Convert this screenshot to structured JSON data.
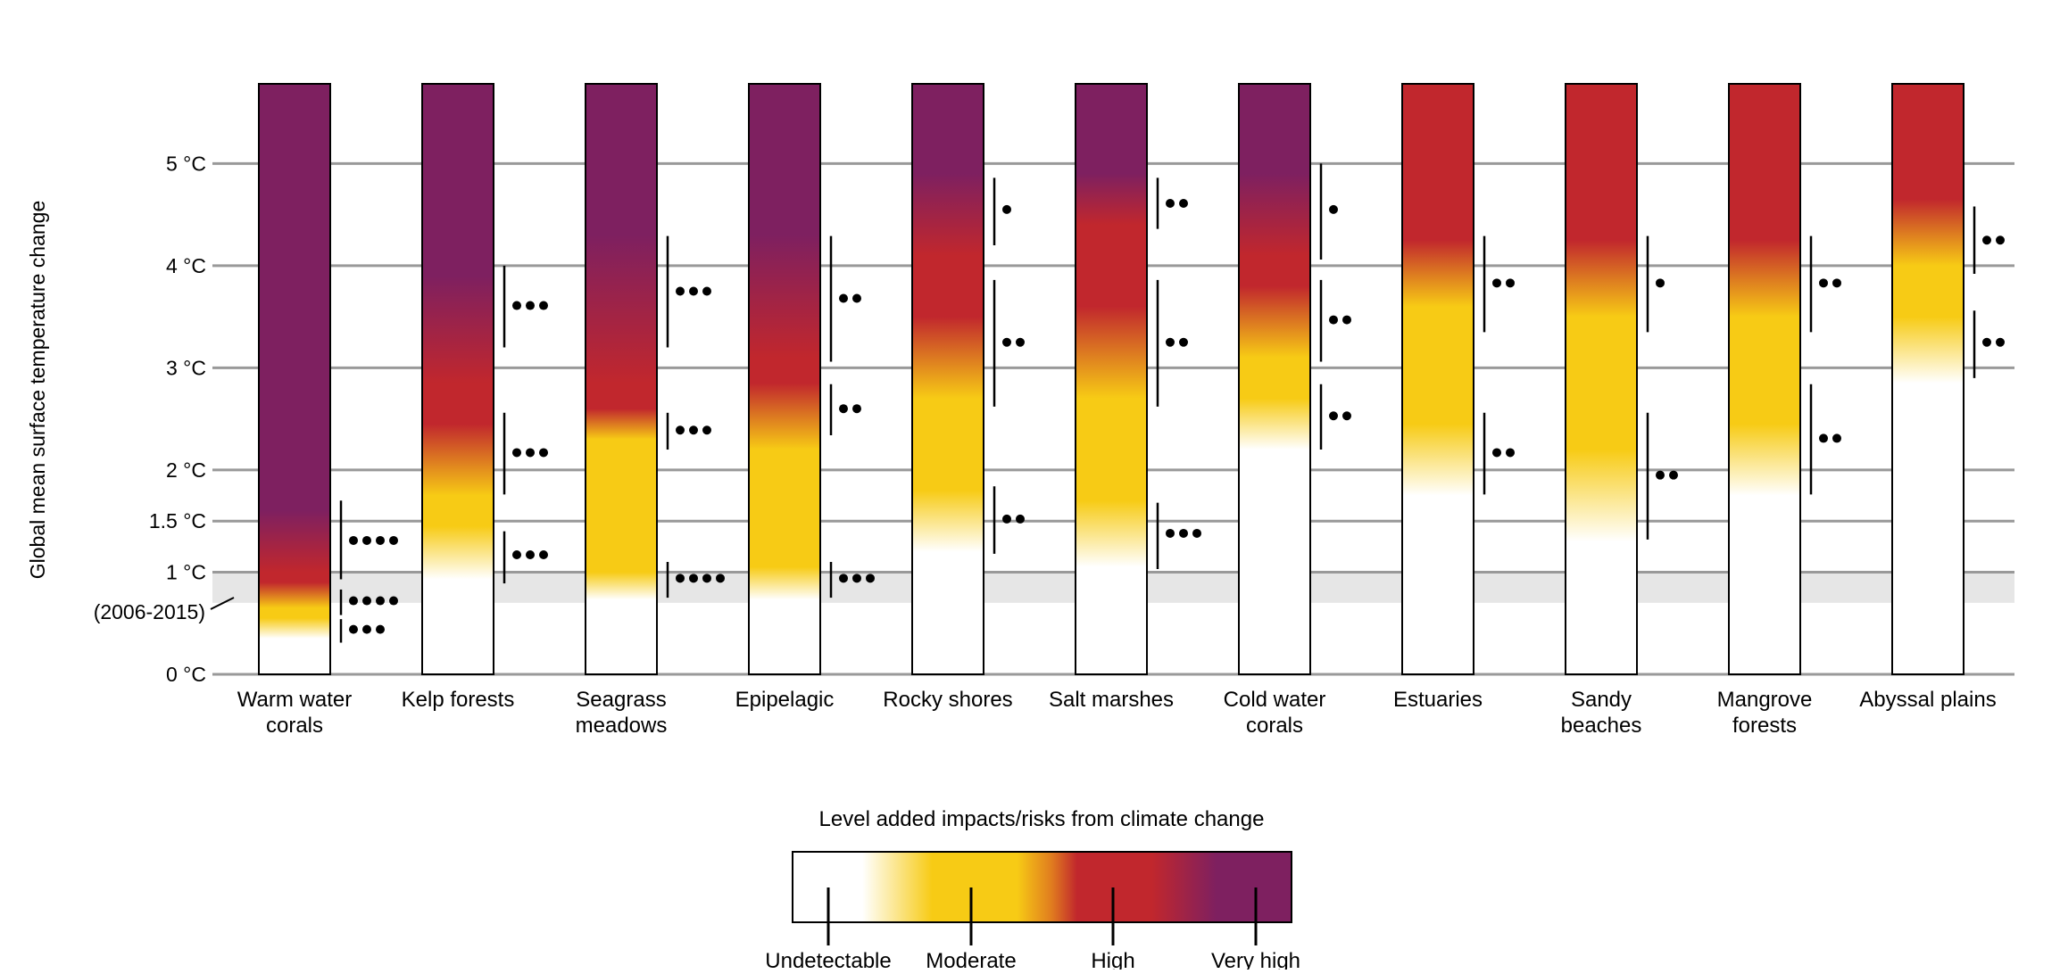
{
  "chart_data": {
    "type": "heatmap",
    "ylabel": "Global mean surface temperature change",
    "ylim": [
      0,
      5.78
    ],
    "yticks": [
      {
        "value": 0,
        "label": "0 °C"
      },
      {
        "value": 1,
        "label": "1 °C"
      },
      {
        "value": 1.5,
        "label": "1.5 °C"
      },
      {
        "value": 2,
        "label": "2 °C"
      },
      {
        "value": 3,
        "label": "3 °C"
      },
      {
        "value": 4,
        "label": "4 °C"
      },
      {
        "value": 5,
        "label": "5 °C"
      }
    ],
    "reference_band": {
      "range": [
        0.7,
        1.0
      ],
      "label": "(2006-2015)"
    },
    "colors": {
      "undetectable": "#ffffff",
      "moderate": "#f7cb15",
      "transition": "#e07b1f",
      "high": "#c1272d",
      "very_high": "#7e2060"
    },
    "legend": {
      "title": "Level added impacts/risks from climate change",
      "levels": [
        "Undetectable",
        "Moderate",
        "High",
        "Very high"
      ],
      "placement": "bottom-center"
    },
    "systems": [
      {
        "label": [
          "Warm water",
          "corals"
        ],
        "stops": [
          [
            0.35,
            "undetectable"
          ],
          [
            0.55,
            "moderate"
          ],
          [
            0.65,
            "moderate"
          ],
          [
            0.9,
            "high"
          ],
          [
            1.0,
            "high"
          ],
          [
            1.6,
            "very_high"
          ]
        ],
        "confidence": [
          {
            "range": [
              0.93,
              1.7
            ],
            "at": 1.31,
            "dots": 4
          },
          {
            "range": [
              0.58,
              0.83
            ],
            "at": 0.72,
            "dots": 4
          },
          {
            "range": [
              0.31,
              0.54
            ],
            "at": 0.44,
            "dots": 3
          }
        ]
      },
      {
        "label": [
          "Kelp forests"
        ],
        "stops": [
          [
            0.93,
            "undetectable"
          ],
          [
            1.45,
            "moderate"
          ],
          [
            1.75,
            "moderate"
          ],
          [
            2.45,
            "high"
          ],
          [
            2.85,
            "high"
          ],
          [
            3.9,
            "very_high"
          ]
        ],
        "confidence": [
          {
            "range": [
              3.2,
              4.0
            ],
            "at": 3.61,
            "dots": 3
          },
          {
            "range": [
              1.76,
              2.56
            ],
            "at": 2.17,
            "dots": 3
          },
          {
            "range": [
              0.89,
              1.4
            ],
            "at": 1.17,
            "dots": 3
          }
        ]
      },
      {
        "label": [
          "Seagrass",
          "meadows"
        ],
        "stops": [
          [
            0.73,
            "undetectable"
          ],
          [
            1.0,
            "moderate"
          ],
          [
            2.3,
            "moderate"
          ],
          [
            2.6,
            "high"
          ],
          [
            2.85,
            "high"
          ],
          [
            4.3,
            "very_high"
          ]
        ],
        "confidence": [
          {
            "range": [
              3.2,
              4.29
            ],
            "at": 3.75,
            "dots": 3
          },
          {
            "range": [
              2.2,
              2.56
            ],
            "at": 2.39,
            "dots": 3
          },
          {
            "range": [
              0.75,
              1.1
            ],
            "at": 0.94,
            "dots": 4
          }
        ]
      },
      {
        "label": [
          "Epipelagic"
        ],
        "stops": [
          [
            0.73,
            "undetectable"
          ],
          [
            1.05,
            "moderate"
          ],
          [
            2.2,
            "moderate"
          ],
          [
            2.85,
            "high"
          ],
          [
            3.1,
            "high"
          ],
          [
            4.3,
            "very_high"
          ]
        ],
        "confidence": [
          {
            "range": [
              3.06,
              4.29
            ],
            "at": 3.68,
            "dots": 2
          },
          {
            "range": [
              2.34,
              2.84
            ],
            "at": 2.6,
            "dots": 2
          },
          {
            "range": [
              0.75,
              1.1
            ],
            "at": 0.94,
            "dots": 3
          }
        ]
      },
      {
        "label": [
          "Rocky shores"
        ],
        "stops": [
          [
            1.2,
            "undetectable"
          ],
          [
            1.8,
            "moderate"
          ],
          [
            2.7,
            "moderate"
          ],
          [
            3.5,
            "high"
          ],
          [
            4.1,
            "high"
          ],
          [
            4.9,
            "very_high"
          ]
        ],
        "confidence": [
          {
            "range": [
              4.2,
              4.86
            ],
            "at": 4.55,
            "dots": 1
          },
          {
            "range": [
              2.62,
              3.86
            ],
            "at": 3.25,
            "dots": 2
          },
          {
            "range": [
              1.18,
              1.84
            ],
            "at": 1.52,
            "dots": 2
          }
        ]
      },
      {
        "label": [
          "Salt marshes"
        ],
        "stops": [
          [
            1.05,
            "undetectable"
          ],
          [
            1.7,
            "moderate"
          ],
          [
            2.7,
            "moderate"
          ],
          [
            3.6,
            "high"
          ],
          [
            4.4,
            "high"
          ],
          [
            4.9,
            "very_high"
          ]
        ],
        "confidence": [
          {
            "range": [
              4.36,
              4.86
            ],
            "at": 4.61,
            "dots": 2
          },
          {
            "range": [
              2.62,
              3.86
            ],
            "at": 3.25,
            "dots": 2
          },
          {
            "range": [
              1.03,
              1.68
            ],
            "at": 1.38,
            "dots": 3
          }
        ]
      },
      {
        "label": [
          "Cold water",
          "corals"
        ],
        "stops": [
          [
            2.2,
            "undetectable"
          ],
          [
            2.7,
            "moderate"
          ],
          [
            3.1,
            "moderate"
          ],
          [
            3.8,
            "high"
          ],
          [
            4.1,
            "high"
          ],
          [
            4.9,
            "very_high"
          ]
        ],
        "confidence": [
          {
            "range": [
              4.06,
              5.0
            ],
            "at": 4.55,
            "dots": 1
          },
          {
            "range": [
              3.06,
              3.86
            ],
            "at": 3.47,
            "dots": 2
          },
          {
            "range": [
              2.2,
              2.84
            ],
            "at": 2.53,
            "dots": 2
          }
        ]
      },
      {
        "label": [
          "Estuaries"
        ],
        "stops": [
          [
            1.75,
            "undetectable"
          ],
          [
            2.45,
            "moderate"
          ],
          [
            3.6,
            "moderate"
          ],
          [
            4.25,
            "high"
          ]
        ],
        "confidence": [
          {
            "range": [
              3.35,
              4.29
            ],
            "at": 3.83,
            "dots": 2
          },
          {
            "range": [
              1.76,
              2.56
            ],
            "at": 2.17,
            "dots": 2
          }
        ]
      },
      {
        "label": [
          "Sandy",
          "beaches"
        ],
        "stops": [
          [
            1.3,
            "undetectable"
          ],
          [
            2.2,
            "moderate"
          ],
          [
            3.5,
            "moderate"
          ],
          [
            4.25,
            "high"
          ]
        ],
        "confidence": [
          {
            "range": [
              3.35,
              4.29
            ],
            "at": 3.83,
            "dots": 1
          },
          {
            "range": [
              1.32,
              2.56
            ],
            "at": 1.95,
            "dots": 2
          }
        ]
      },
      {
        "label": [
          "Mangrove",
          "forests"
        ],
        "stops": [
          [
            1.75,
            "undetectable"
          ],
          [
            2.45,
            "moderate"
          ],
          [
            3.5,
            "moderate"
          ],
          [
            4.25,
            "high"
          ]
        ],
        "confidence": [
          {
            "range": [
              3.35,
              4.29
            ],
            "at": 3.83,
            "dots": 2
          },
          {
            "range": [
              1.76,
              2.84
            ],
            "at": 2.31,
            "dots": 2
          }
        ]
      },
      {
        "label": [
          "Abyssal plains"
        ],
        "stops": [
          [
            2.85,
            "undetectable"
          ],
          [
            3.5,
            "moderate"
          ],
          [
            4.0,
            "moderate"
          ],
          [
            4.65,
            "high"
          ]
        ],
        "confidence": [
          {
            "range": [
              3.92,
              4.58
            ],
            "at": 4.25,
            "dots": 2
          },
          {
            "range": [
              2.9,
              3.56
            ],
            "at": 3.25,
            "dots": 2
          }
        ]
      }
    ]
  }
}
